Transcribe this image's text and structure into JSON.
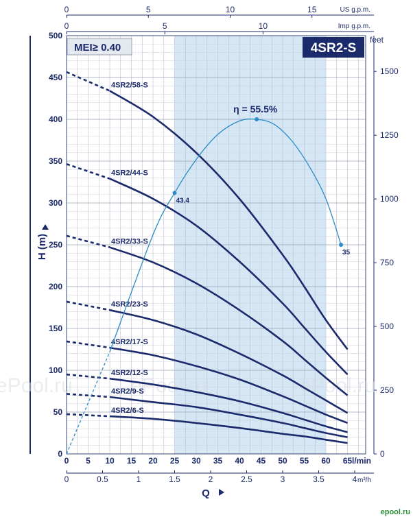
{
  "chart_data": {
    "type": "line",
    "title": "4SR2-S",
    "badge": "MEI≥ 0.40",
    "xlabel": "Q",
    "ylabel": "H (m)",
    "x_unit_lmin": "l/min",
    "x_unit_m3h": "m³/h",
    "top_axis_1_unit": "US g.p.m.",
    "top_axis_2_unit": "Imp g.p.m.",
    "right_axis_unit": "feet",
    "xlim": [
      0,
      68
    ],
    "ylim": [
      0,
      500
    ],
    "x_ticks_lmin": [
      "0",
      "5",
      "10",
      "15",
      "20",
      "25",
      "30",
      "35",
      "40",
      "45",
      "50",
      "55",
      "60",
      "65"
    ],
    "x_ticks_m3h": [
      "0",
      "0.5",
      "1",
      "1.5",
      "2",
      "2.5",
      "3",
      "3.5",
      "4"
    ],
    "top_ticks_us": [
      "0",
      "5",
      "10",
      "15"
    ],
    "top_ticks_imp": [
      "0",
      "5",
      "10"
    ],
    "y_ticks": [
      "0",
      "50",
      "100",
      "150",
      "200",
      "250",
      "300",
      "350",
      "400",
      "450",
      "500"
    ],
    "right_ticks_feet": [
      "0",
      "250",
      "500",
      "750",
      "1000",
      "1250",
      "1500"
    ],
    "recommended_range": [
      25,
      60
    ],
    "grid": true,
    "series": [
      {
        "name": "4SR2/58-S",
        "x": [
          2,
          10,
          20,
          30,
          40,
          50,
          55,
          60,
          65
        ],
        "y": [
          452,
          434,
          403,
          360,
          305,
          238,
          200,
          160,
          125
        ]
      },
      {
        "name": "4SR2/44-S",
        "x": [
          2,
          10,
          20,
          30,
          40,
          50,
          55,
          60,
          65
        ],
        "y": [
          343,
          329,
          305,
          273,
          230,
          180,
          151,
          122,
          95
        ]
      },
      {
        "name": "4SR2/33-S",
        "x": [
          2,
          10,
          20,
          30,
          40,
          50,
          55,
          60,
          65
        ],
        "y": [
          258,
          247,
          229,
          204,
          172,
          135,
          113,
          91,
          70
        ]
      },
      {
        "name": "4SR2/23-S",
        "x": [
          2,
          10,
          20,
          30,
          40,
          50,
          55,
          60,
          65
        ],
        "y": [
          180,
          172,
          160,
          143,
          120,
          94,
          79,
          64,
          49
        ]
      },
      {
        "name": "4SR2/17-S",
        "x": [
          2,
          10,
          20,
          30,
          40,
          50,
          55,
          60,
          65
        ],
        "y": [
          133,
          127,
          118,
          105,
          89,
          69,
          58,
          47,
          37
        ]
      },
      {
        "name": "4SR2/12-S",
        "x": [
          2,
          10,
          20,
          30,
          40,
          50,
          55,
          60,
          65
        ],
        "y": [
          94,
          90,
          83,
          74,
          63,
          49,
          41,
          33,
          26
        ]
      },
      {
        "name": "4SR2/9-S",
        "x": [
          2,
          10,
          20,
          30,
          40,
          50,
          55,
          60,
          65
        ],
        "y": [
          71,
          68,
          62,
          56,
          47,
          37,
          31,
          25,
          20
        ]
      },
      {
        "name": "4SR2/6-S",
        "x": [
          2,
          10,
          20,
          30,
          40,
          50,
          55,
          60,
          65
        ],
        "y": [
          47,
          45,
          42,
          37,
          31,
          24,
          21,
          17,
          13
        ]
      }
    ],
    "efficiency_curve": {
      "label": "η = 55.5%",
      "x": [
        0,
        10,
        20,
        25,
        30,
        35,
        40,
        44,
        48,
        52,
        56,
        60,
        63.5
      ],
      "y": [
        0,
        122,
        262,
        312,
        352,
        382,
        398,
        400,
        394,
        375,
        345,
        305,
        250
      ],
      "points": [
        {
          "x": 25,
          "y": 312,
          "label": "43.4"
        },
        {
          "x": 44,
          "y": 400,
          "label": ""
        },
        {
          "x": 63.5,
          "y": 250,
          "label": "35"
        }
      ]
    },
    "watermarks": [
      "ePool.ru",
      "ePool.ru",
      "ePool.ru"
    ],
    "footer_logo": "epool.ru"
  }
}
